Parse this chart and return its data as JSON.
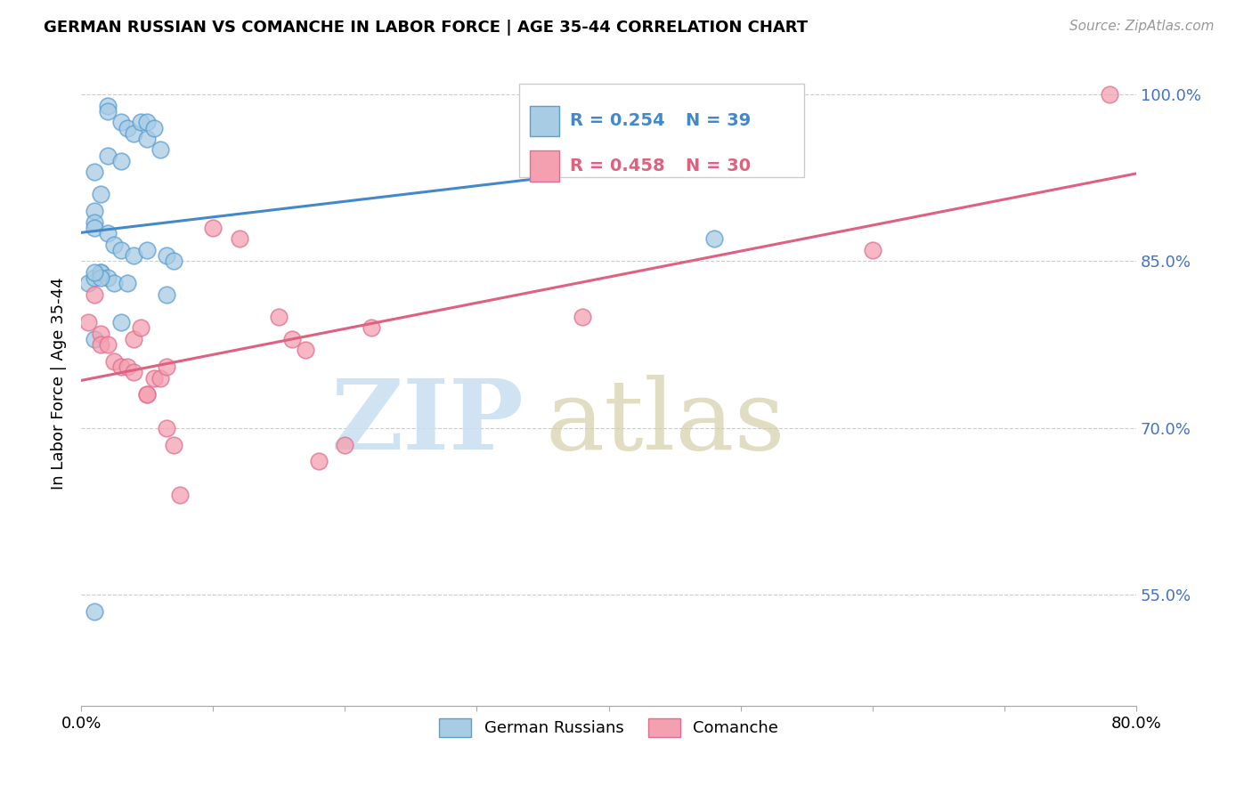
{
  "title": "GERMAN RUSSIAN VS COMANCHE IN LABOR FORCE | AGE 35-44 CORRELATION CHART",
  "source": "Source: ZipAtlas.com",
  "ylabel": "In Labor Force | Age 35-44",
  "xlim": [
    0.0,
    0.8
  ],
  "ylim": [
    0.45,
    1.03
  ],
  "yticks": [
    0.55,
    0.7,
    0.85,
    1.0
  ],
  "ytick_labels": [
    "55.0%",
    "70.0%",
    "85.0%",
    "100.0%"
  ],
  "xticks": [
    0.0,
    0.1,
    0.2,
    0.3,
    0.4,
    0.5,
    0.6,
    0.7,
    0.8
  ],
  "xtick_labels": [
    "0.0%",
    "",
    "",
    "",
    "",
    "",
    "",
    "",
    "80.0%"
  ],
  "blue_R": 0.254,
  "blue_N": 39,
  "pink_R": 0.458,
  "pink_N": 30,
  "blue_fill": "#a8cce4",
  "pink_fill": "#f4a0b0",
  "blue_edge": "#5a9fd4",
  "pink_edge": "#e07090",
  "blue_line": "#4488cc",
  "pink_line": "#e06080",
  "label_color": "#4472C4",
  "blue_x": [
    0.005,
    0.01,
    0.01,
    0.01,
    0.01,
    0.01,
    0.01,
    0.015,
    0.015,
    0.015,
    0.02,
    0.02,
    0.02,
    0.02,
    0.025,
    0.025,
    0.03,
    0.03,
    0.03,
    0.035,
    0.035,
    0.04,
    0.04,
    0.045,
    0.05,
    0.05,
    0.05,
    0.055,
    0.06,
    0.065,
    0.065,
    0.07,
    0.015,
    0.35,
    0.48,
    0.01,
    0.02,
    0.03,
    0.01
  ],
  "blue_y": [
    0.83,
    0.93,
    0.895,
    0.885,
    0.88,
    0.835,
    0.78,
    0.91,
    0.84,
    0.84,
    0.99,
    0.985,
    0.875,
    0.835,
    0.865,
    0.83,
    0.975,
    0.86,
    0.795,
    0.97,
    0.83,
    0.965,
    0.855,
    0.975,
    0.975,
    0.96,
    0.86,
    0.97,
    0.95,
    0.855,
    0.82,
    0.85,
    0.835,
    0.985,
    0.87,
    0.84,
    0.945,
    0.94,
    0.535
  ],
  "pink_x": [
    0.005,
    0.01,
    0.015,
    0.015,
    0.02,
    0.025,
    0.03,
    0.035,
    0.04,
    0.04,
    0.045,
    0.05,
    0.05,
    0.055,
    0.06,
    0.065,
    0.065,
    0.07,
    0.075,
    0.1,
    0.12,
    0.15,
    0.16,
    0.17,
    0.18,
    0.2,
    0.22,
    0.38,
    0.6,
    0.78
  ],
  "pink_y": [
    0.795,
    0.82,
    0.785,
    0.775,
    0.775,
    0.76,
    0.755,
    0.755,
    0.75,
    0.78,
    0.79,
    0.73,
    0.73,
    0.745,
    0.745,
    0.755,
    0.7,
    0.685,
    0.64,
    0.88,
    0.87,
    0.8,
    0.78,
    0.77,
    0.67,
    0.685,
    0.79,
    0.8,
    0.86,
    1.0
  ]
}
